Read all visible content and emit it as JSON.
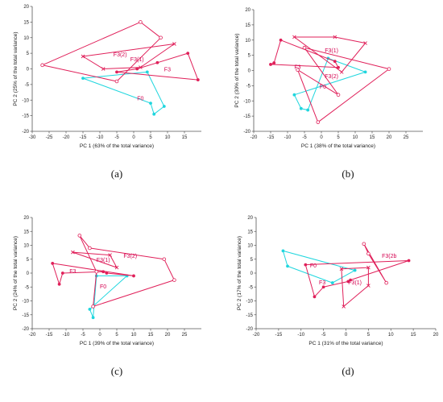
{
  "colors": {
    "f0": "#1fd6de",
    "f3": "#e0205a",
    "axis": "#555555"
  },
  "chart_data": [
    {
      "type": "scatter",
      "panel_label": "(a)",
      "xlabel": "PC 1 (63% of the total variance)",
      "ylabel": "PC 2 (25% of the total variance)",
      "xlim": [
        -30,
        20
      ],
      "ylim": [
        -20,
        20
      ],
      "xticks": [
        -30,
        -25,
        -20,
        -15,
        -10,
        -5,
        0,
        5,
        10,
        15
      ],
      "yticks": [
        -20,
        -15,
        -10,
        -5,
        0,
        5,
        10,
        15,
        20
      ],
      "annotations": [
        {
          "text": "F0",
          "x": 1,
          "y": -10,
          "color": "f0"
        },
        {
          "text": "F3",
          "x": 9,
          "y": -0.8,
          "color": "f3"
        },
        {
          "text": "F3(1)",
          "x": -1,
          "y": 2.5,
          "color": "f3"
        },
        {
          "text": "F3(2)",
          "x": -6,
          "y": 4,
          "color": "f3"
        }
      ],
      "series": [
        {
          "color": "f0",
          "marker": "dot",
          "points": [
            [
              -15,
              -3
            ],
            [
              4,
              -1
            ],
            [
              9,
              -12
            ],
            [
              6,
              -14.5
            ],
            [
              5,
              -11
            ]
          ]
        },
        {
          "color": "f3",
          "marker": "dot",
          "points": [
            [
              -5,
              -1
            ],
            [
              1,
              0
            ],
            [
              7,
              2
            ],
            [
              16,
              5
            ],
            [
              19,
              -3.5
            ]
          ]
        },
        {
          "color": "f3",
          "marker": "x",
          "points": [
            [
              -15,
              4
            ],
            [
              -9,
              0
            ],
            [
              2,
              0.5
            ],
            [
              12,
              8
            ]
          ]
        },
        {
          "color": "f3",
          "marker": "circle",
          "points": [
            [
              -27,
              1.2
            ],
            [
              2,
              15
            ],
            [
              8,
              10
            ],
            [
              -5,
              -4
            ]
          ]
        }
      ]
    },
    {
      "type": "scatter",
      "panel_label": "(b)",
      "xlabel": "PC 1 (38% of the total variance)",
      "ylabel": "PC 2 (30% of the total variance)",
      "xlim": [
        -20,
        30
      ],
      "ylim": [
        -20,
        20
      ],
      "xticks": [
        -20,
        -15,
        -10,
        -5,
        0,
        5,
        10,
        15,
        20,
        25
      ],
      "yticks": [
        -20,
        -15,
        -10,
        -5,
        0,
        5,
        10,
        15,
        20
      ],
      "annotations": [
        {
          "text": "F0",
          "x": -0.5,
          "y": -6,
          "color": "f3"
        },
        {
          "text": "F3",
          "x": -8,
          "y": 0.5,
          "color": "f3"
        },
        {
          "text": "F3(1)",
          "x": 1,
          "y": 6,
          "color": "f3"
        },
        {
          "text": "F3(2)",
          "x": 1,
          "y": -2.5,
          "color": "f3"
        }
      ],
      "series": [
        {
          "color": "f0",
          "marker": "dot",
          "points": [
            [
              -8,
              -8
            ],
            [
              -6,
              -12.5
            ],
            [
              -4,
              -13
            ],
            [
              2,
              4
            ],
            [
              13,
              -0.5
            ]
          ]
        },
        {
          "color": "f3",
          "marker": "dot",
          "points": [
            [
              -15,
              2
            ],
            [
              -14,
              2.5
            ],
            [
              -12,
              10
            ],
            [
              4,
              3
            ],
            [
              5,
              1
            ]
          ]
        },
        {
          "color": "f3",
          "marker": "x",
          "points": [
            [
              -8,
              11
            ],
            [
              4,
              11
            ],
            [
              13,
              9
            ],
            [
              6,
              -0.5
            ]
          ]
        },
        {
          "color": "f3",
          "marker": "circle",
          "points": [
            [
              -5,
              7.5
            ],
            [
              20,
              0.5
            ],
            [
              -1,
              -17
            ],
            [
              -7,
              0.2
            ],
            [
              5,
              -8
            ]
          ]
        }
      ]
    },
    {
      "type": "scatter",
      "panel_label": "(c)",
      "xlabel": "PC 1 (39% of the total variance)",
      "ylabel": "PC 2 (24% of the total variance)",
      "xlim": [
        -20,
        30
      ],
      "ylim": [
        -20,
        20
      ],
      "xticks": [
        -20,
        -15,
        -10,
        -5,
        0,
        5,
        10,
        15,
        20,
        25
      ],
      "yticks": [
        -20,
        -15,
        -10,
        -5,
        0,
        5,
        10,
        15,
        20
      ],
      "annotations": [
        {
          "text": "F0",
          "x": 0,
          "y": -5.5,
          "color": "f3"
        },
        {
          "text": "F3",
          "x": -9,
          "y": 0,
          "color": "f3"
        },
        {
          "text": "F3(1)",
          "x": -1,
          "y": 4,
          "color": "f3"
        },
        {
          "text": "F3(2)",
          "x": 7,
          "y": 5.5,
          "color": "f3"
        }
      ],
      "series": [
        {
          "color": "f0",
          "marker": "dot",
          "points": [
            [
              -3,
              -13
            ],
            [
              -2,
              -16
            ],
            [
              -1,
              -1
            ],
            [
              8,
              -1
            ]
          ]
        },
        {
          "color": "f3",
          "marker": "dot",
          "points": [
            [
              -14,
              3.5
            ],
            [
              -12,
              -4
            ],
            [
              -11,
              0
            ],
            [
              1,
              0.5
            ],
            [
              2,
              0
            ],
            [
              10,
              -1
            ]
          ]
        },
        {
          "color": "f3",
          "marker": "x",
          "points": [
            [
              -8,
              7.5
            ],
            [
              3,
              6.5
            ],
            [
              5,
              2
            ]
          ]
        },
        {
          "color": "f3",
          "marker": "circle",
          "points": [
            [
              -6,
              13.5
            ],
            [
              -3,
              9
            ],
            [
              19,
              5
            ],
            [
              22,
              -2.5
            ],
            [
              -2,
              -12
            ],
            [
              -1,
              0.5
            ]
          ]
        }
      ]
    },
    {
      "type": "scatter",
      "panel_label": "(d)",
      "xlabel": "PC 1 (31% of the total variance)",
      "ylabel": "PC 2 (17% of the total variance)",
      "xlim": [
        -20,
        20
      ],
      "ylim": [
        -20,
        20
      ],
      "xticks": [
        -20,
        -15,
        -10,
        -5,
        0,
        5,
        10,
        15,
        20
      ],
      "yticks": [
        -20,
        -15,
        -10,
        -5,
        0,
        5,
        10,
        15,
        20
      ],
      "annotations": [
        {
          "text": "F0",
          "x": -8,
          "y": 2,
          "color": "f3"
        },
        {
          "text": "F3",
          "x": -6,
          "y": -4,
          "color": "f3"
        },
        {
          "text": "F3(1)",
          "x": 0.5,
          "y": -4,
          "color": "f3"
        },
        {
          "text": "F3(2b",
          "x": 8,
          "y": 5.5,
          "color": "f3"
        }
      ],
      "series": [
        {
          "color": "f0",
          "marker": "dot",
          "points": [
            [
              -14,
              8
            ],
            [
              -13,
              2.5
            ],
            [
              -3,
              -3.5
            ],
            [
              2,
              1
            ]
          ]
        },
        {
          "color": "f3",
          "marker": "dot",
          "points": [
            [
              -9,
              3
            ],
            [
              -7,
              -8.5
            ],
            [
              -5,
              -5
            ],
            [
              0.5,
              -3
            ],
            [
              1,
              -2.5
            ],
            [
              14,
              4.5
            ]
          ]
        },
        {
          "color": "f3",
          "marker": "x",
          "points": [
            [
              -1,
              1.5
            ],
            [
              -0.5,
              -12
            ],
            [
              5,
              -4.5
            ],
            [
              5,
              2
            ]
          ]
        },
        {
          "color": "f3",
          "marker": "circle",
          "points": [
            [
              4,
              10.5
            ],
            [
              5,
              7
            ],
            [
              9,
              -3.5
            ]
          ]
        }
      ]
    }
  ]
}
